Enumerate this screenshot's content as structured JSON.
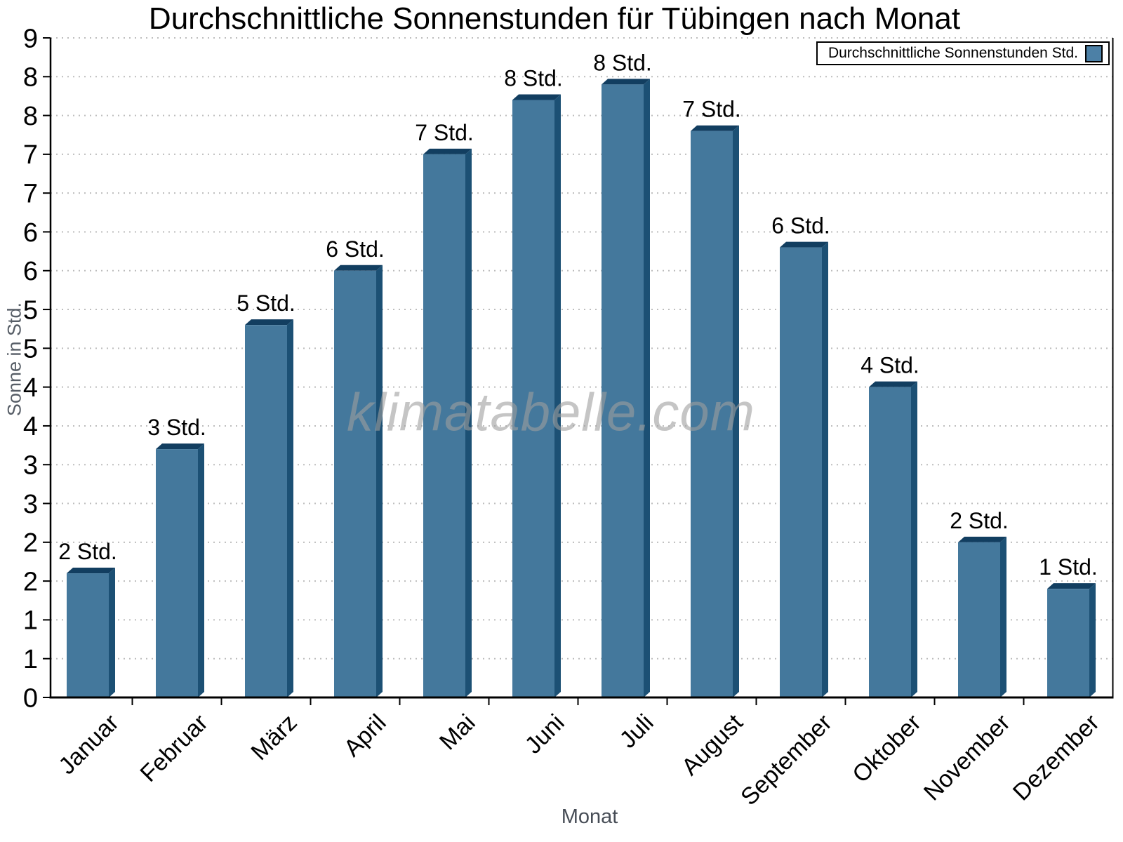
{
  "chart_data": {
    "type": "bar",
    "title": "Durchschnittliche Sonnenstunden für Tübingen nach Monat",
    "xlabel": "Monat",
    "ylabel": "Sonne in Std.",
    "watermark": "klimatabelle.com",
    "legend": {
      "label": "Durchschnittliche Sonnenstunden Std.",
      "position": "top-right"
    },
    "categories": [
      "Januar",
      "Februar",
      "März",
      "April",
      "Mai",
      "Juni",
      "Juli",
      "August",
      "September",
      "Oktober",
      "November",
      "Dezember"
    ],
    "values": [
      1.6,
      3.2,
      4.8,
      5.5,
      7.0,
      7.7,
      7.9,
      7.3,
      5.8,
      4.0,
      2.0,
      1.4
    ],
    "bar_labels": [
      "2 Std.",
      "3 Std.",
      "5 Std.",
      "6 Std.",
      "7 Std.",
      "8 Std.",
      "8 Std.",
      "7 Std.",
      "6 Std.",
      "4 Std.",
      "2 Std.",
      "1 Std."
    ],
    "ylim": [
      0,
      8.5
    ],
    "y_tick_step": 0.5,
    "y_tick_labels": [
      "0",
      "1",
      "1",
      "2",
      "2",
      "3",
      "3",
      "4",
      "4",
      "5",
      "5",
      "6",
      "6",
      "7",
      "7",
      "8",
      "8",
      "9"
    ],
    "grid": "horizontal-dotted",
    "legend_border": true,
    "colors": {
      "bar_face": "#44789c",
      "bar_side": "#1c5074",
      "bar_top": "#123e60",
      "legend_swatch": "#4c80a6",
      "axis": "#000000",
      "grid": "#bdbdbd",
      "tick_label": "#000000",
      "value_label": "#000000",
      "y_axis_title": "#565d66",
      "x_axis_title": "#474d56"
    }
  }
}
